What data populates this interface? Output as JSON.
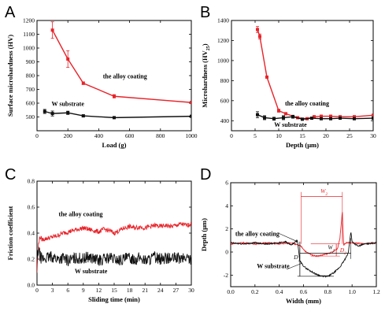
{
  "chart_data": [
    {
      "type": "line",
      "panel": "A",
      "xlabel": "Load (g)",
      "ylabel": "Surface microhardness (HV)",
      "xlim": [
        0,
        1000
      ],
      "ylim": [
        400,
        1200
      ],
      "xticks": [
        0,
        200,
        400,
        600,
        800,
        1000
      ],
      "yticks": [
        500,
        600,
        700,
        800,
        900,
        1000,
        1100,
        1200
      ],
      "series": [
        {
          "name": "the alloy coating",
          "color": "#e8242a",
          "marker": "square",
          "x": [
            100,
            200,
            300,
            500,
            1000
          ],
          "y": [
            1130,
            920,
            745,
            650,
            605
          ],
          "err": [
            60,
            60,
            10,
            12,
            5
          ]
        },
        {
          "name": "W substrate",
          "color": "#111111",
          "marker": "square",
          "x": [
            50,
            100,
            200,
            300,
            500,
            1000
          ],
          "y": [
            540,
            525,
            530,
            508,
            495,
            505
          ],
          "err": [
            15,
            18,
            12,
            8,
            6,
            5
          ]
        }
      ],
      "annotations": [
        {
          "text": "the alloy coating",
          "x": 570,
          "y": 780
        },
        {
          "text": "W substrate",
          "x": 200,
          "y": 580
        }
      ]
    },
    {
      "type": "line",
      "panel": "B",
      "xlabel": "Depth (μm)",
      "ylabel": "Microhardness (HV",
      "ylabel_sub": "25",
      "ylabel_suffix": ")",
      "xlim": [
        0,
        30
      ],
      "ylim": [
        300,
        1400
      ],
      "xticks": [
        0,
        5,
        10,
        15,
        20,
        25,
        30
      ],
      "yticks": [
        400,
        600,
        800,
        1000,
        1200,
        1400
      ],
      "series": [
        {
          "name": "the alloy coating",
          "color": "#e8242a",
          "marker": "square",
          "x": [
            5.5,
            6,
            7.5,
            10,
            11.5,
            14,
            16,
            17.5,
            19,
            21,
            23,
            26,
            30
          ],
          "y": [
            1310,
            1240,
            835,
            500,
            470,
            430,
            420,
            440,
            445,
            445,
            440,
            440,
            455
          ],
          "err": [
            30,
            25,
            10,
            15,
            10,
            8,
            8,
            8,
            8,
            8,
            8,
            8,
            8
          ]
        },
        {
          "name": "W substrate",
          "color": "#111111",
          "marker": "square",
          "x": [
            5.5,
            7,
            9,
            11,
            13,
            15,
            17,
            19,
            21,
            23,
            26,
            30
          ],
          "y": [
            460,
            430,
            420,
            430,
            440,
            415,
            425,
            420,
            420,
            425,
            420,
            425
          ],
          "err": [
            30,
            20,
            15,
            20,
            15,
            10,
            10,
            10,
            10,
            10,
            10,
            10
          ]
        }
      ],
      "annotations": [
        {
          "text": "the alloy coating",
          "x": 16,
          "y": 550
        },
        {
          "text": "W substrate",
          "x": 12.5,
          "y": 340
        }
      ]
    },
    {
      "type": "line",
      "panel": "C",
      "xlabel": "Sliding time (min)",
      "ylabel": "Friction coefficient",
      "xlim": [
        0,
        30
      ],
      "ylim": [
        0,
        0.8
      ],
      "xticks": [
        0,
        3,
        6,
        9,
        12,
        15,
        18,
        21,
        24,
        27,
        30
      ],
      "yticks": [
        0.0,
        0.2,
        0.4,
        0.6,
        0.8
      ],
      "series": [
        {
          "name": "the alloy coating",
          "color": "#e8242a",
          "x": [
            0,
            0.3,
            0.6,
            1,
            2,
            3,
            4,
            5,
            6,
            7,
            8,
            9,
            10,
            11,
            12,
            13,
            14,
            15,
            16,
            17,
            18,
            19,
            20,
            21,
            22,
            23,
            24,
            25,
            26,
            27,
            28,
            29,
            30
          ],
          "y": [
            0.1,
            0.33,
            0.37,
            0.35,
            0.36,
            0.37,
            0.38,
            0.4,
            0.41,
            0.42,
            0.43,
            0.44,
            0.43,
            0.42,
            0.41,
            0.43,
            0.42,
            0.4,
            0.42,
            0.44,
            0.45,
            0.44,
            0.45,
            0.44,
            0.45,
            0.46,
            0.45,
            0.46,
            0.45,
            0.46,
            0.47,
            0.46,
            0.47
          ],
          "noise": 0.018
        },
        {
          "name": "W substrate",
          "color": "#111111",
          "x": [
            0,
            0.3,
            0.6,
            1,
            2,
            3,
            4,
            5,
            6,
            7,
            8,
            9,
            10,
            11,
            12,
            13,
            14,
            15,
            16,
            17,
            18,
            19,
            20,
            21,
            22,
            23,
            24,
            25,
            26,
            27,
            28,
            29,
            30
          ],
          "y": [
            0.18,
            0.28,
            0.22,
            0.2,
            0.21,
            0.22,
            0.2,
            0.21,
            0.19,
            0.2,
            0.21,
            0.2,
            0.22,
            0.2,
            0.19,
            0.2,
            0.21,
            0.2,
            0.19,
            0.2,
            0.21,
            0.2,
            0.21,
            0.19,
            0.2,
            0.22,
            0.2,
            0.21,
            0.2,
            0.21,
            0.2,
            0.21,
            0.2
          ],
          "noise": 0.045
        }
      ],
      "annotations": [
        {
          "text": "the alloy coating",
          "x": 8.5,
          "y": 0.53
        },
        {
          "text": "W substrate",
          "x": 10.5,
          "y": 0.09
        }
      ]
    },
    {
      "type": "line",
      "panel": "D",
      "xlabel": "Width (mm)",
      "ylabel": "Depth (μm)",
      "xlim": [
        0.0,
        1.2
      ],
      "ylim": [
        -3,
        6
      ],
      "xticks": [
        0.0,
        0.2,
        0.4,
        0.6,
        0.8,
        1.0,
        1.2
      ],
      "yticks": [
        -2,
        0,
        2,
        4,
        6
      ],
      "series": [
        {
          "name": "the alloy coating",
          "color": "#e8242a",
          "x": [
            0.0,
            0.1,
            0.2,
            0.3,
            0.4,
            0.5,
            0.55,
            0.58,
            0.62,
            0.68,
            0.72,
            0.78,
            0.84,
            0.88,
            0.9,
            0.92,
            0.93,
            0.95,
            1.0,
            1.1,
            1.2
          ],
          "y": [
            0.7,
            0.8,
            0.7,
            0.8,
            0.7,
            0.8,
            0.6,
            0.5,
            0.0,
            -0.3,
            -0.35,
            -0.2,
            0.0,
            0.3,
            1.2,
            3.5,
            0.6,
            0.8,
            0.8,
            0.7,
            0.8
          ],
          "noise": 0.05
        },
        {
          "name": "W substrate",
          "color": "#111111",
          "x": [
            0.0,
            0.1,
            0.2,
            0.3,
            0.4,
            0.45,
            0.5,
            0.55,
            0.57,
            0.6,
            0.62,
            0.65,
            0.7,
            0.75,
            0.8,
            0.85,
            0.9,
            0.95,
            0.97,
            0.99,
            1.0,
            1.05,
            1.1,
            1.2
          ],
          "y": [
            0.8,
            0.7,
            0.8,
            0.7,
            0.8,
            0.9,
            0.6,
            1.0,
            -0.8,
            -1.2,
            -1.4,
            -1.6,
            -1.9,
            -2.1,
            -2.1,
            -1.8,
            -1.3,
            -0.5,
            0.0,
            1.8,
            0.9,
            0.5,
            0.7,
            0.8
          ],
          "noise": 0.06
        }
      ],
      "annotations": [
        {
          "text": "the alloy coating",
          "x": 0.22,
          "y": 1.4
        },
        {
          "text": "W substrate",
          "x": 0.35,
          "y": -1.4
        },
        {
          "text": "W",
          "sub": "2"
        },
        {
          "text": "D",
          "sub": "2"
        },
        {
          "text": "D",
          "sub": "1"
        },
        {
          "text": "W",
          "sub": "1"
        }
      ]
    }
  ]
}
